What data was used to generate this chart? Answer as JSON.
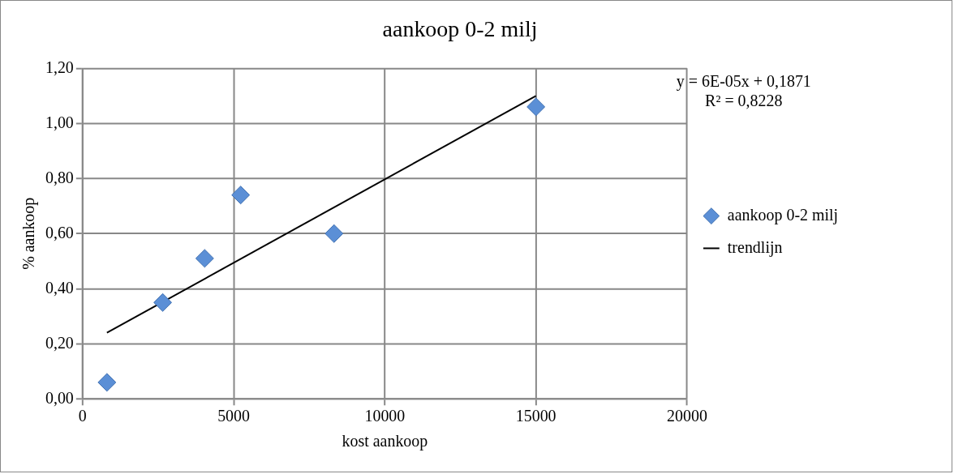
{
  "chart_data": {
    "type": "scatter",
    "title": "aankoop 0-2 milj",
    "xlabel": "kost aankoop",
    "ylabel": "% aankoop",
    "xlim": [
      0,
      20000
    ],
    "xticks": [
      0,
      5000,
      10000,
      15000,
      20000
    ],
    "ylim": [
      0,
      1.2
    ],
    "yticks": [
      {
        "value": 0,
        "label": "0,00"
      },
      {
        "value": 0.2,
        "label": "0,20"
      },
      {
        "value": 0.4,
        "label": "0,40"
      },
      {
        "value": 0.6,
        "label": "0,60"
      },
      {
        "value": 0.8,
        "label": "0,80"
      },
      {
        "value": 1.0,
        "label": "1,00"
      },
      {
        "value": 1.2,
        "label": "1,20"
      }
    ],
    "grid": true,
    "legend": "right",
    "marker": "diamond",
    "annotations": [
      "y = 6E-05x + 0,1871",
      "R² = 0,8228"
    ],
    "series": [
      {
        "name": "aankoop 0-2 milj",
        "color": "#5b8fd6",
        "x": [
          805,
          2650,
          4040,
          5230,
          8320,
          15000
        ],
        "values": [
          0.06,
          0.35,
          0.51,
          0.74,
          0.6,
          1.06
        ]
      },
      {
        "name": "trendlijn",
        "type": "line",
        "color": "#000000",
        "marker": "none",
        "x": [
          805,
          15000
        ],
        "values": [
          0.24,
          1.1
        ]
      }
    ]
  }
}
